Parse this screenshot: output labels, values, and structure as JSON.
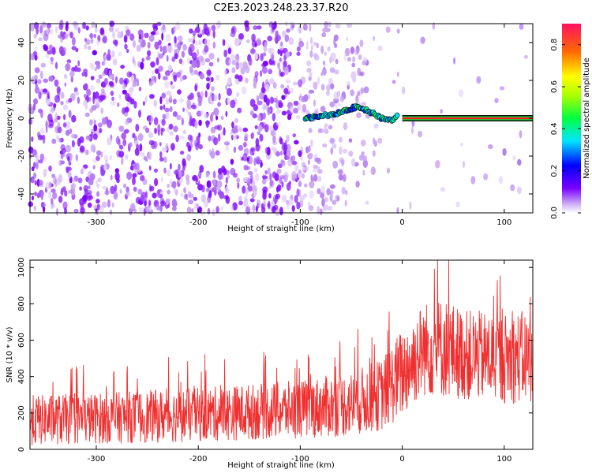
{
  "title": "C2E3.2023.248.23.37.R20",
  "chart_data": [
    {
      "type": "heatmap",
      "name": "spectrogram",
      "xlabel": "Height of straight line (km)",
      "ylabel": "Frequency (Hz)",
      "xlim": [
        -365,
        128
      ],
      "ylim": [
        -50,
        50
      ],
      "xticks": [
        -300,
        -200,
        -100,
        0,
        100
      ],
      "yticks": [
        -40,
        -20,
        0,
        20,
        40
      ],
      "ridge": {
        "description_points_km_hz": [
          [
            -95,
            0
          ],
          [
            -80,
            1
          ],
          [
            -60,
            3
          ],
          [
            -45,
            6
          ],
          [
            -30,
            3
          ],
          [
            -20,
            0
          ],
          [
            -10,
            -1
          ],
          [
            -5,
            1
          ],
          [
            0,
            2
          ],
          [
            128,
            0
          ]
        ],
        "steady_from_km": 0
      },
      "colorbar": {
        "label": "Normalized spectral amplitude",
        "range": [
          0.0,
          0.9
        ],
        "ticks": [
          0.0,
          0.2,
          0.4,
          0.6,
          0.8
        ]
      }
    },
    {
      "type": "line",
      "name": "snr",
      "xlabel": "Height of straight line (km)",
      "ylabel": "SNR (10 * v/v)",
      "xlim": [
        -365,
        128
      ],
      "ylim": [
        0,
        1040
      ],
      "xticks": [
        -300,
        -200,
        -100,
        0,
        100
      ],
      "yticks": [
        0,
        200,
        400,
        600,
        800,
        1000
      ],
      "color": "#f03030",
      "envelope": {
        "x": [
          -365,
          -300,
          -200,
          -100,
          -50,
          -20,
          0,
          20,
          40,
          60,
          100,
          128
        ],
        "median": [
          160,
          170,
          190,
          220,
          250,
          300,
          420,
          550,
          560,
          520,
          500,
          510
        ],
        "spread": [
          140,
          140,
          150,
          160,
          180,
          200,
          250,
          260,
          280,
          250,
          250,
          260
        ]
      }
    }
  ]
}
